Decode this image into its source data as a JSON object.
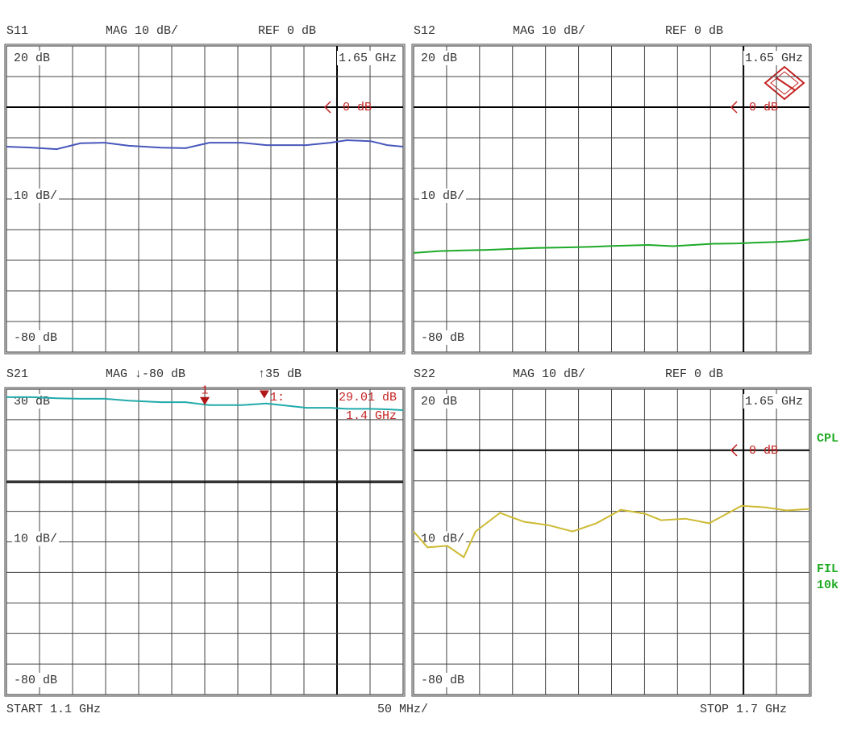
{
  "chart_data": [
    {
      "type": "line",
      "header": [
        "S11",
        "MAG 10 dB/",
        "REF 0 dB"
      ],
      "top_label": "20 dB",
      "mid_label": "10 dB/",
      "bottom_label": "-80 dB",
      "corner_label": "1.65 GHz",
      "ref_level": 0,
      "ref_marker": "0 dB",
      "xlim": [
        1.1,
        1.7
      ],
      "ylim": [
        -80,
        20
      ],
      "x": [
        1.1,
        1.139,
        1.176,
        1.212,
        1.249,
        1.285,
        1.334,
        1.371,
        1.407,
        1.456,
        1.493,
        1.554,
        1.59,
        1.615,
        1.651,
        1.676,
        1.7
      ],
      "series": [
        {
          "color": "#4857bb",
          "values": [
            -12.9,
            -13.2,
            -13.7,
            -11.8,
            -11.6,
            -12.6,
            -13.2,
            -13.4,
            -11.6,
            -11.6,
            -12.4,
            -12.4,
            -11.6,
            -10.8,
            -11.1,
            -12.4,
            -12.9
          ]
        }
      ]
    },
    {
      "type": "line",
      "header": [
        "S12",
        "MAG 10 dB/",
        "REF 0 dB"
      ],
      "top_label": "20 dB",
      "mid_label": "10 dB/",
      "bottom_label": "-80 dB",
      "corner_label": "1.65 GHz",
      "ref_level": 0,
      "ref_marker": "0 dB",
      "xlim": [
        1.1,
        1.7
      ],
      "ylim": [
        -80,
        20
      ],
      "x": [
        1.1,
        1.139,
        1.176,
        1.212,
        1.249,
        1.285,
        1.334,
        1.371,
        1.407,
        1.456,
        1.493,
        1.554,
        1.59,
        1.615,
        1.651,
        1.676,
        1.7
      ],
      "series": [
        {
          "color": "#1faa2a",
          "values": [
            -47.6,
            -47.0,
            -46.8,
            -46.6,
            -46.3,
            -46.0,
            -45.8,
            -45.6,
            -45.3,
            -45.0,
            -45.4,
            -44.6,
            -44.5,
            -44.3,
            -44.0,
            -43.7,
            -43.2
          ]
        }
      ]
    },
    {
      "type": "line",
      "header": [
        "S21",
        "MAG ↓-80 dB",
        "↑35 dB"
      ],
      "top_label": "30 dB",
      "mid_label": "10 dB/",
      "bottom_label": "-80 dB",
      "ref_level": 0,
      "xlim": [
        1.1,
        1.7
      ],
      "ylim": [
        -80,
        35
      ],
      "x": [
        1.1,
        1.139,
        1.176,
        1.212,
        1.249,
        1.285,
        1.334,
        1.371,
        1.407,
        1.456,
        1.493,
        1.554,
        1.59,
        1.615,
        1.651,
        1.676,
        1.7
      ],
      "series": [
        {
          "color": "#22aaaa",
          "values": [
            32.0,
            32.0,
            31.6,
            31.4,
            31.4,
            30.7,
            30.1,
            30.1,
            29.0,
            29.0,
            29.6,
            28.0,
            28.0,
            27.6,
            27.6,
            27.4,
            27.1
          ]
        }
      ],
      "markers": [
        {
          "label": "1",
          "readout": "1:",
          "x": 1.4,
          "y": 29.01,
          "x_label": "1.4 GHz",
          "y_label": "29.01 dB"
        },
        {
          "x": 1.49,
          "y": 31.5
        }
      ]
    },
    {
      "type": "line",
      "header": [
        "S22",
        "MAG 10 dB/",
        "REF 0 dB"
      ],
      "top_label": "20 dB",
      "mid_label": "10 dB/",
      "bottom_label": "-80 dB",
      "corner_label": "1.65 GHz",
      "ref_level": 0,
      "ref_marker": "0 dB",
      "xlim": [
        1.1,
        1.7
      ],
      "ylim": [
        -80,
        20
      ],
      "x": [
        1.1,
        1.121,
        1.151,
        1.176,
        1.194,
        1.231,
        1.267,
        1.304,
        1.341,
        1.377,
        1.414,
        1.451,
        1.475,
        1.512,
        1.548,
        1.597,
        1.634,
        1.665,
        1.7
      ],
      "series": [
        {
          "color": "#cdbb33",
          "values": [
            -26.6,
            -31.8,
            -31.3,
            -35.0,
            -26.6,
            -20.5,
            -23.4,
            -24.5,
            -26.6,
            -23.9,
            -19.5,
            -20.8,
            -22.9,
            -22.4,
            -23.9,
            -18.2,
            -18.7,
            -19.7,
            -19.2
          ]
        }
      ]
    }
  ],
  "footer": {
    "start": "START 1.1 GHz",
    "span": "50 MHz/",
    "stop": "STOP 1.7 GHz"
  },
  "side_labels": [
    "CPL",
    "FIL",
    "10k"
  ]
}
